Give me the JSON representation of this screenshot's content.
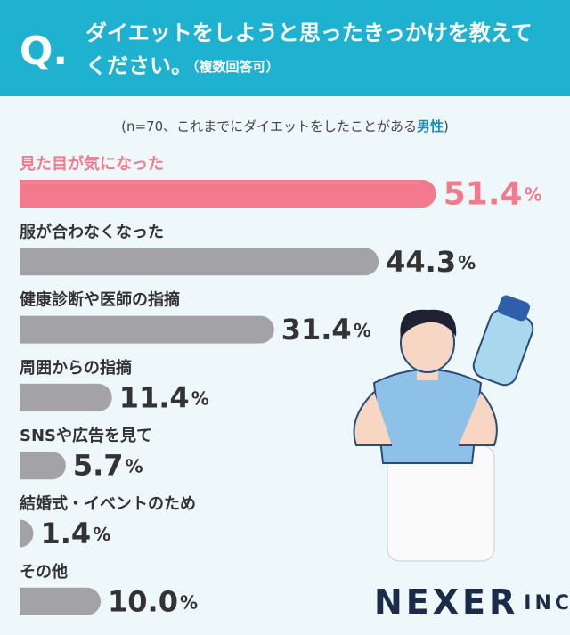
{
  "header": {
    "q_mark": "Q.",
    "question_line1": "ダイエットをしようと思ったきっかけを教えて",
    "question_line2": "ください。",
    "note": "（複数回答可）"
  },
  "chart_data": {
    "type": "bar",
    "orientation": "horizontal",
    "subtitle_prefix": "(n=70、これまでにダイエットをしたことがある",
    "subtitle_highlight": "男性",
    "subtitle_suffix": ")",
    "categories": [
      "見た目が気になった",
      "服が合わなくなった",
      "健康診断や医師の指摘",
      "周囲からの指摘",
      "SNSや広告を見て",
      "結婚式・イベントのため",
      "その他"
    ],
    "values": [
      51.4,
      44.3,
      31.4,
      11.4,
      5.7,
      1.4,
      10.0
    ],
    "value_labels": [
      "51.4",
      "44.3",
      "31.4",
      "11.4",
      "5.7",
      "1.4",
      "10.0"
    ],
    "unit": "%",
    "highlight_color": "#f27a8c",
    "color": "#a3a3a6"
  },
  "logo": {
    "name": "NEXER",
    "suffix": "INC."
  }
}
